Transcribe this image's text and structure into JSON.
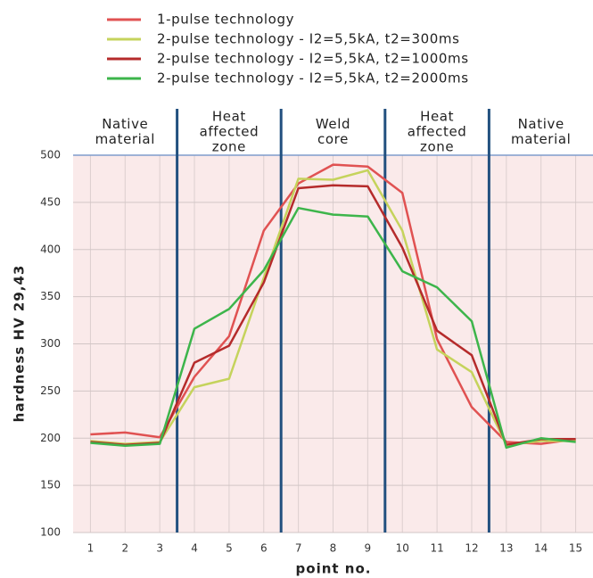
{
  "chart_data": {
    "type": "line",
    "categories": [
      1,
      2,
      3,
      4,
      5,
      6,
      7,
      8,
      9,
      10,
      11,
      12,
      13,
      14,
      15
    ],
    "series": [
      {
        "name": "1-pulse technology",
        "color": "#e05252",
        "values": [
          204,
          206,
          201,
          265,
          308,
          420,
          470,
          490,
          488,
          460,
          305,
          233,
          196,
          194,
          199
        ]
      },
      {
        "name": "2-pulse technology - I2=5,5kA, t2=300ms",
        "color": "#c5d35c",
        "values": [
          197,
          194,
          196,
          254,
          263,
          370,
          475,
          474,
          484,
          420,
          294,
          270,
          193,
          197,
          197
        ]
      },
      {
        "name": "2-pulse technology - I2=5,5kA, t2=1000ms",
        "color": "#b52b2b",
        "values": [
          196,
          193,
          195,
          280,
          298,
          365,
          465,
          468,
          467,
          402,
          314,
          288,
          193,
          199,
          199
        ]
      },
      {
        "name": "2-pulse technology - I2=5,5kA, t2=2000ms",
        "color": "#3db54b",
        "values": [
          195,
          192,
          194,
          316,
          337,
          378,
          444,
          437,
          435,
          377,
          360,
          324,
          190,
          200,
          196
        ]
      }
    ],
    "zones": [
      {
        "lines": [
          "Native",
          "material"
        ],
        "span": [
          1,
          3
        ]
      },
      {
        "lines": [
          "Heat",
          "affected",
          "zone"
        ],
        "span": [
          4,
          6
        ]
      },
      {
        "lines": [
          "Weld",
          "core"
        ],
        "span": [
          7,
          9
        ]
      },
      {
        "lines": [
          "Heat",
          "affected",
          "zone"
        ],
        "span": [
          10,
          12
        ]
      },
      {
        "lines": [
          "Native",
          "material"
        ],
        "span": [
          13,
          15
        ]
      }
    ],
    "x_label": "point no.",
    "y_label": "hardness HV 29,43",
    "ylim": [
      100,
      500
    ],
    "yticks": [
      100,
      150,
      200,
      250,
      300,
      350,
      400,
      450,
      500
    ],
    "grid": true
  }
}
